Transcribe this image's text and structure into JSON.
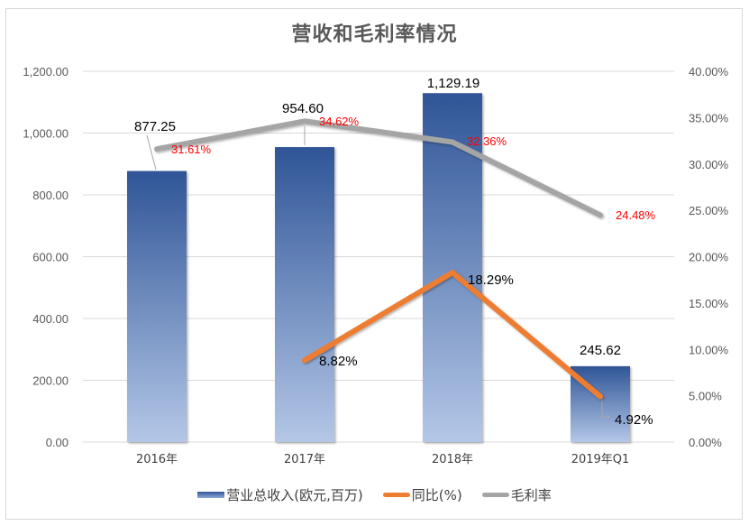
{
  "title": "营收和毛利率情况",
  "colors": {
    "bar_top": "#2f5597",
    "bar_bottom": "#b4c7e7",
    "yoy_line": "#ed7d31",
    "margin_line": "#a5a5a5",
    "margin_label": "#ff0000",
    "gridline": "#d9d9d9",
    "axis_text": "#595959"
  },
  "legend": [
    {
      "label": "营业总收入(欧元,百万)",
      "type": "bar"
    },
    {
      "label": "同比(%)",
      "type": "line",
      "color": "#ed7d31"
    },
    {
      "label": "毛利率",
      "type": "line",
      "color": "#a5a5a5"
    }
  ],
  "chart_data": {
    "type": "bar+line",
    "title": "营收和毛利率情况",
    "categories": [
      "2016年",
      "2017年",
      "2018年",
      "2019年Q1"
    ],
    "series": [
      {
        "name": "营业总收入(欧元,百万)",
        "type": "bar",
        "axis": "left",
        "values": [
          877.25,
          954.6,
          1129.19,
          245.62
        ],
        "labels": [
          "877.25",
          "954.60",
          "1,129.19",
          "245.62"
        ]
      },
      {
        "name": "同比(%)",
        "type": "line",
        "axis": "right",
        "values": [
          null,
          8.82,
          18.29,
          4.92
        ],
        "labels": [
          "",
          "8.82%",
          "18.29%",
          "4.92%"
        ]
      },
      {
        "name": "毛利率",
        "type": "line",
        "axis": "right",
        "values": [
          31.61,
          34.62,
          32.36,
          24.48
        ],
        "labels": [
          "31.61%",
          "34.62%",
          "32.36%",
          "24.48%"
        ]
      }
    ],
    "y_left": {
      "min": 0,
      "max": 1200,
      "step": 200,
      "ticks": [
        "0.00",
        "200.00",
        "400.00",
        "600.00",
        "800.00",
        "1,000.00",
        "1,200.00"
      ]
    },
    "y_right": {
      "min": 0,
      "max": 40,
      "step": 5,
      "ticks": [
        "0.00%",
        "5.00%",
        "10.00%",
        "15.00%",
        "20.00%",
        "25.00%",
        "30.00%",
        "35.00%",
        "40.00%"
      ]
    },
    "grid": true,
    "legend_position": "bottom"
  }
}
